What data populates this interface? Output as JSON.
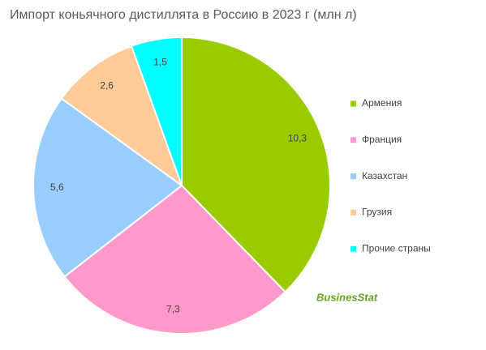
{
  "chart_data": {
    "type": "pie",
    "title": "Импорт коньячного дистиллята в Россию в 2023 г (млн л)",
    "categories": [
      "Армения",
      "Франция",
      "Казахстан",
      "Грузия",
      "Прочие страны"
    ],
    "values": [
      10.3,
      7.3,
      5.6,
      2.6,
      1.5
    ],
    "value_labels": [
      "10,3",
      "7,3",
      "5,6",
      "2,6",
      "1,5"
    ],
    "colors": [
      "#99cc00",
      "#ff99cc",
      "#99ccff",
      "#ffcc99",
      "#00ffff"
    ],
    "legend": "right",
    "watermark": "BusinesStat"
  }
}
